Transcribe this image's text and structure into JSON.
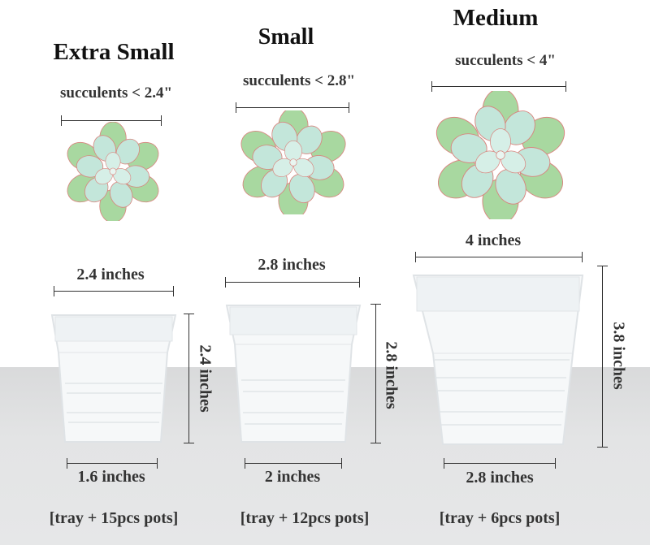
{
  "columns": [
    {
      "title": "Extra Small",
      "succulent_label": "succulents < 2.4\"",
      "top_width": "2.4 inches",
      "height": "2.4 inches",
      "bottom_width": "1.6 inches",
      "package": "[tray + 15pcs pots]"
    },
    {
      "title": "Small",
      "succulent_label": "succulents < 2.8\"",
      "top_width": "2.8 inches",
      "height": "2.8 inches",
      "bottom_width": "2 inches",
      "package": "[tray + 12pcs pots]"
    },
    {
      "title": "Medium",
      "succulent_label": "succulents < 4\"",
      "top_width": "4 inches",
      "height": "3.8 inches",
      "bottom_width": "2.8 inches",
      "package": "[tray + 6pcs pots]"
    }
  ],
  "colors": {
    "leaf_outer": "#9ed19a",
    "leaf_inner": "#bfe3d6",
    "leaf_tip": "#d9857f",
    "pot": "#f6f8f9",
    "floor": "#e3e4e5"
  },
  "icons": [
    "succulent-image",
    "pot-image"
  ]
}
